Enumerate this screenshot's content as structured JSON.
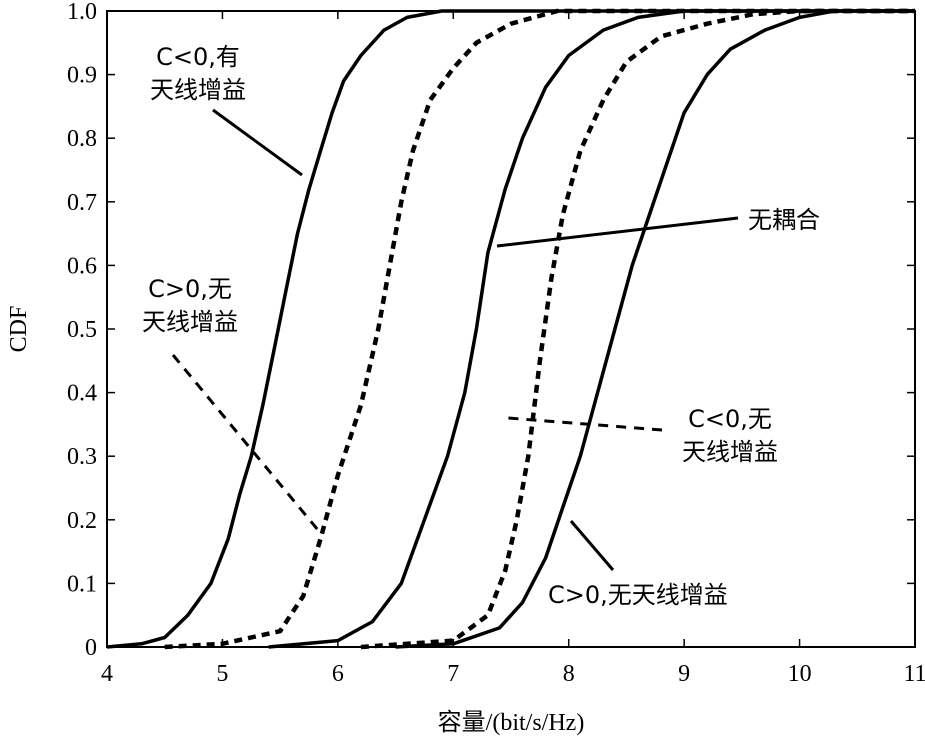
{
  "chart_data": {
    "type": "line",
    "title": "",
    "xlabel": "容量/(bit/s/Hz)",
    "ylabel": "CDF",
    "xlim": [
      4,
      11
    ],
    "ylim": [
      0,
      1
    ],
    "xticks": [
      4,
      5,
      6,
      7,
      8,
      9,
      10,
      11
    ],
    "yticks": [
      "0",
      "0.1",
      "0.2",
      "0.3",
      "0.4",
      "0.5",
      "0.6",
      "0.7",
      "0.8",
      "0.9",
      "1.0"
    ],
    "grid": false,
    "series": [
      {
        "label": "C<0,有天线增益",
        "style": "solid",
        "points": [
          [
            4.0,
            0.0
          ],
          [
            4.3,
            0.005
          ],
          [
            4.5,
            0.015
          ],
          [
            4.7,
            0.05
          ],
          [
            4.9,
            0.1
          ],
          [
            5.05,
            0.17
          ],
          [
            5.15,
            0.24
          ],
          [
            5.25,
            0.3
          ],
          [
            5.35,
            0.38
          ],
          [
            5.45,
            0.47
          ],
          [
            5.55,
            0.56
          ],
          [
            5.65,
            0.65
          ],
          [
            5.75,
            0.72
          ],
          [
            5.85,
            0.78
          ],
          [
            5.95,
            0.84
          ],
          [
            6.05,
            0.89
          ],
          [
            6.2,
            0.93
          ],
          [
            6.4,
            0.97
          ],
          [
            6.6,
            0.99
          ],
          [
            6.9,
            1.0
          ],
          [
            11.0,
            1.0
          ]
        ]
      },
      {
        "label": "C>0,无天线增益",
        "style": "dashed",
        "points": [
          [
            4.5,
            0.0
          ],
          [
            5.0,
            0.005
          ],
          [
            5.5,
            0.025
          ],
          [
            5.7,
            0.08
          ],
          [
            5.85,
            0.17
          ],
          [
            6.0,
            0.27
          ],
          [
            6.2,
            0.38
          ],
          [
            6.35,
            0.5
          ],
          [
            6.45,
            0.6
          ],
          [
            6.55,
            0.7
          ],
          [
            6.65,
            0.78
          ],
          [
            6.8,
            0.86
          ],
          [
            7.0,
            0.91
          ],
          [
            7.2,
            0.95
          ],
          [
            7.5,
            0.98
          ],
          [
            7.9,
            1.0
          ],
          [
            11.0,
            1.0
          ]
        ]
      },
      {
        "label": "无耦合",
        "style": "solid",
        "points": [
          [
            5.4,
            0.0
          ],
          [
            6.0,
            0.01
          ],
          [
            6.3,
            0.04
          ],
          [
            6.55,
            0.1
          ],
          [
            6.75,
            0.2
          ],
          [
            6.95,
            0.3
          ],
          [
            7.1,
            0.4
          ],
          [
            7.2,
            0.5
          ],
          [
            7.3,
            0.62
          ],
          [
            7.45,
            0.72
          ],
          [
            7.6,
            0.8
          ],
          [
            7.8,
            0.88
          ],
          [
            8.0,
            0.93
          ],
          [
            8.3,
            0.97
          ],
          [
            8.6,
            0.99
          ],
          [
            9.0,
            1.0
          ],
          [
            11.0,
            1.0
          ]
        ]
      },
      {
        "label": "C<0,无天线增益",
        "style": "dashed",
        "points": [
          [
            6.2,
            0.0
          ],
          [
            7.0,
            0.01
          ],
          [
            7.3,
            0.05
          ],
          [
            7.45,
            0.12
          ],
          [
            7.55,
            0.2
          ],
          [
            7.65,
            0.3
          ],
          [
            7.75,
            0.45
          ],
          [
            7.85,
            0.58
          ],
          [
            7.95,
            0.68
          ],
          [
            8.1,
            0.78
          ],
          [
            8.3,
            0.86
          ],
          [
            8.5,
            0.92
          ],
          [
            8.8,
            0.96
          ],
          [
            9.2,
            0.98
          ],
          [
            9.6,
            0.995
          ],
          [
            10.0,
            1.0
          ],
          [
            11.0,
            1.0
          ]
        ]
      },
      {
        "label": "C>0,无天线增益",
        "style": "solid",
        "points": [
          [
            6.5,
            0.0
          ],
          [
            7.0,
            0.005
          ],
          [
            7.4,
            0.03
          ],
          [
            7.6,
            0.07
          ],
          [
            7.8,
            0.14
          ],
          [
            7.95,
            0.22
          ],
          [
            8.1,
            0.3
          ],
          [
            8.25,
            0.4
          ],
          [
            8.4,
            0.5
          ],
          [
            8.55,
            0.6
          ],
          [
            8.7,
            0.68
          ],
          [
            8.85,
            0.76
          ],
          [
            9.0,
            0.84
          ],
          [
            9.2,
            0.9
          ],
          [
            9.4,
            0.94
          ],
          [
            9.7,
            0.97
          ],
          [
            10.0,
            0.99
          ],
          [
            10.3,
            1.0
          ],
          [
            11.0,
            1.0
          ]
        ]
      }
    ],
    "annotations": [
      {
        "lines": [
          "C<0,有",
          "天线增益"
        ],
        "style": "solid"
      },
      {
        "lines": [
          "无耦合"
        ],
        "style": "solid"
      },
      {
        "lines": [
          "C>0,无",
          "天线增益"
        ],
        "style": "dashed"
      },
      {
        "lines": [
          "C<0,无",
          "天线增益"
        ],
        "style": "dashed"
      },
      {
        "lines": [
          "C>0,无天线增益"
        ],
        "style": "solid"
      }
    ]
  }
}
